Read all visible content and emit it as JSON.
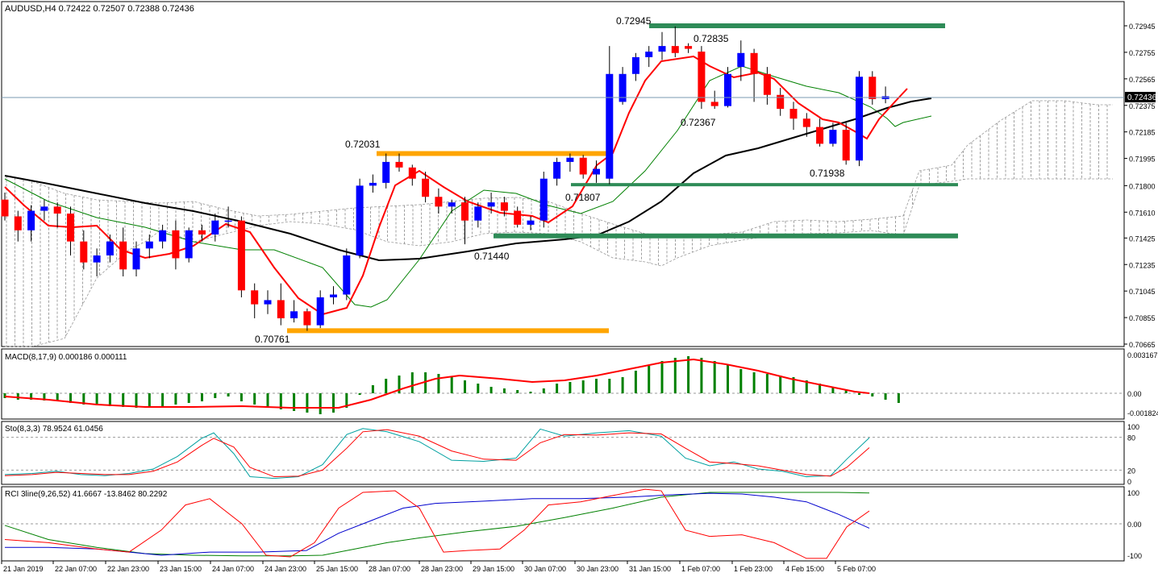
{
  "symbol_header": "AUDUSD,H4  0.72422 0.72507 0.72388 0.72436",
  "current_price": "0.72436",
  "price_axis": [
    "0.72945",
    "0.72755",
    "0.72565",
    "0.72375",
    "0.72185",
    "0.71995",
    "0.71800",
    "0.71610",
    "0.71425",
    "0.71235",
    "0.71045",
    "0.70855",
    "0.70665"
  ],
  "annotations": [
    "0.72945",
    "0.72835",
    "0.72031",
    "0.72367",
    "0.71807",
    "0.71938",
    "0.71440",
    "0.70761"
  ],
  "time_axis": [
    "21 Jan 2019",
    "22 Jan 07:00",
    "22 Jan 23:00",
    "23 Jan 15:00",
    "24 Jan 07:00",
    "24 Jan 23:00",
    "25 Jan 15:00",
    "28 Jan 07:00",
    "28 Jan 23:00",
    "29 Jan 15:00",
    "30 Jan 07:00",
    "30 Jan 23:00",
    "31 Jan 15:00",
    "1 Feb 07:00",
    "1 Feb 23:00",
    "4 Feb 15:00",
    "5 Feb 07:00"
  ],
  "macd": {
    "label": "MACD(8,17,9) 0.000186 0.000111",
    "axis": [
      "0.003167",
      "0.00",
      "-0.001824"
    ]
  },
  "stoch": {
    "label": "Sto(8,3,3) 78.9524 61.0456",
    "axis": [
      "100",
      "80",
      "20",
      "0"
    ]
  },
  "rci": {
    "label": "RCI 3line(9,26,52) 41.6667 -13.8462 80.2292",
    "axis": [
      "100",
      "0.00",
      "-100"
    ]
  },
  "colors": {
    "bull": "#0000ff",
    "bear": "#ff0000",
    "ma_fast": "#ff0000",
    "ma_slow": "#000000",
    "ma_mid": "#008000",
    "level": "#2e8b57",
    "swing": "#ffa500",
    "macd_hist": "#008000",
    "stoch_k": "#00a0a0",
    "rci_long": "#008000",
    "rci_mid": "#0000cd"
  },
  "chart_data": {
    "type": "candlestick",
    "series": [
      {
        "name": "AUDUSD,H4",
        "values": [
          [
            0.717,
            0.7175,
            0.7155,
            0.7158
          ],
          [
            0.7158,
            0.7162,
            0.714,
            0.7148
          ],
          [
            0.7148,
            0.7166,
            0.714,
            0.7162
          ],
          [
            0.7162,
            0.717,
            0.7155,
            0.7165
          ],
          [
            0.7165,
            0.7168,
            0.715,
            0.716
          ],
          [
            0.716,
            0.7165,
            0.713,
            0.714
          ],
          [
            0.714,
            0.7148,
            0.712,
            0.7125
          ],
          [
            0.7125,
            0.7135,
            0.7115,
            0.713
          ],
          [
            0.713,
            0.7145,
            0.7125,
            0.714
          ],
          [
            0.714,
            0.715,
            0.7115,
            0.712
          ],
          [
            0.712,
            0.714,
            0.7115,
            0.7135
          ],
          [
            0.7135,
            0.7145,
            0.7128,
            0.714
          ],
          [
            0.714,
            0.7152,
            0.7135,
            0.7148
          ],
          [
            0.7148,
            0.7155,
            0.712,
            0.7128
          ],
          [
            0.7128,
            0.715,
            0.7125,
            0.7148
          ],
          [
            0.7148,
            0.7152,
            0.714,
            0.7145
          ],
          [
            0.7145,
            0.716,
            0.714,
            0.7155
          ],
          [
            0.7155,
            0.7165,
            0.715,
            0.7155
          ],
          [
            0.7155,
            0.7158,
            0.71,
            0.7105
          ],
          [
            0.7105,
            0.711,
            0.7085,
            0.7095
          ],
          [
            0.7095,
            0.7105,
            0.7088,
            0.7098
          ],
          [
            0.7098,
            0.711,
            0.708,
            0.7085
          ],
          [
            0.7085,
            0.7098,
            0.7082,
            0.709
          ],
          [
            0.709,
            0.7092,
            0.7076,
            0.708
          ],
          [
            0.708,
            0.7105,
            0.7078,
            0.71
          ],
          [
            0.71,
            0.7108,
            0.7095,
            0.7102
          ],
          [
            0.7102,
            0.7135,
            0.7098,
            0.713
          ],
          [
            0.713,
            0.7185,
            0.7128,
            0.718
          ],
          [
            0.718,
            0.7188,
            0.7175,
            0.7182
          ],
          [
            0.7182,
            0.7203,
            0.7178,
            0.7197
          ],
          [
            0.7197,
            0.7203,
            0.719,
            0.7193
          ],
          [
            0.7193,
            0.7195,
            0.718,
            0.7185
          ],
          [
            0.7185,
            0.719,
            0.7168,
            0.7172
          ],
          [
            0.7172,
            0.7178,
            0.716,
            0.7165
          ],
          [
            0.7165,
            0.717,
            0.716,
            0.7168
          ],
          [
            0.7168,
            0.7172,
            0.7138,
            0.7155
          ],
          [
            0.7155,
            0.7168,
            0.715,
            0.7165
          ],
          [
            0.7165,
            0.7175,
            0.716,
            0.7168
          ],
          [
            0.7168,
            0.7172,
            0.7158,
            0.7162
          ],
          [
            0.7162,
            0.7165,
            0.715,
            0.7152
          ],
          [
            0.7152,
            0.7158,
            0.7148,
            0.7155
          ],
          [
            0.7155,
            0.719,
            0.715,
            0.7185
          ],
          [
            0.7185,
            0.72,
            0.718,
            0.7197
          ],
          [
            0.7197,
            0.7203,
            0.719,
            0.72
          ],
          [
            0.72,
            0.7202,
            0.7185,
            0.7188
          ],
          [
            0.7188,
            0.7198,
            0.7182,
            0.7192
          ],
          [
            0.7185,
            0.728,
            0.7181,
            0.726
          ],
          [
            0.724,
            0.7265,
            0.7238,
            0.726
          ],
          [
            0.726,
            0.7275,
            0.7255,
            0.7272
          ],
          [
            0.7272,
            0.728,
            0.7265,
            0.7276
          ],
          [
            0.7276,
            0.729,
            0.727,
            0.728
          ],
          [
            0.728,
            0.7294,
            0.7272,
            0.7275
          ],
          [
            0.728,
            0.7282,
            0.7275,
            0.7278
          ],
          [
            0.7276,
            0.728,
            0.7235,
            0.724
          ],
          [
            0.724,
            0.7248,
            0.7235,
            0.7237
          ],
          [
            0.7237,
            0.7265,
            0.7236,
            0.726
          ],
          [
            0.7265,
            0.7284,
            0.7255,
            0.7275
          ],
          [
            0.7275,
            0.7278,
            0.724,
            0.726
          ],
          [
            0.726,
            0.7265,
            0.7238,
            0.7245
          ],
          [
            0.7245,
            0.725,
            0.723,
            0.7235
          ],
          [
            0.7235,
            0.724,
            0.722,
            0.7228
          ],
          [
            0.7228,
            0.7232,
            0.7215,
            0.7222
          ],
          [
            0.7222,
            0.7228,
            0.7208,
            0.721
          ],
          [
            0.721,
            0.7225,
            0.7208,
            0.722
          ],
          [
            0.722,
            0.7225,
            0.7195,
            0.7198
          ],
          [
            0.7198,
            0.7262,
            0.7194,
            0.7258
          ],
          [
            0.7258,
            0.7262,
            0.7238,
            0.7242
          ],
          [
            0.7242,
            0.7251,
            0.7239,
            0.7244
          ]
        ]
      }
    ],
    "levels": [
      {
        "price": 0.72945,
        "type": "resistance"
      },
      {
        "price": 0.7203,
        "type": "swing-high"
      },
      {
        "price": 0.71807,
        "type": "support"
      },
      {
        "price": 0.7144,
        "type": "support"
      },
      {
        "price": 0.70761,
        "type": "swing-low"
      }
    ],
    "ylim": [
      0.70665,
      0.7305
    ]
  }
}
